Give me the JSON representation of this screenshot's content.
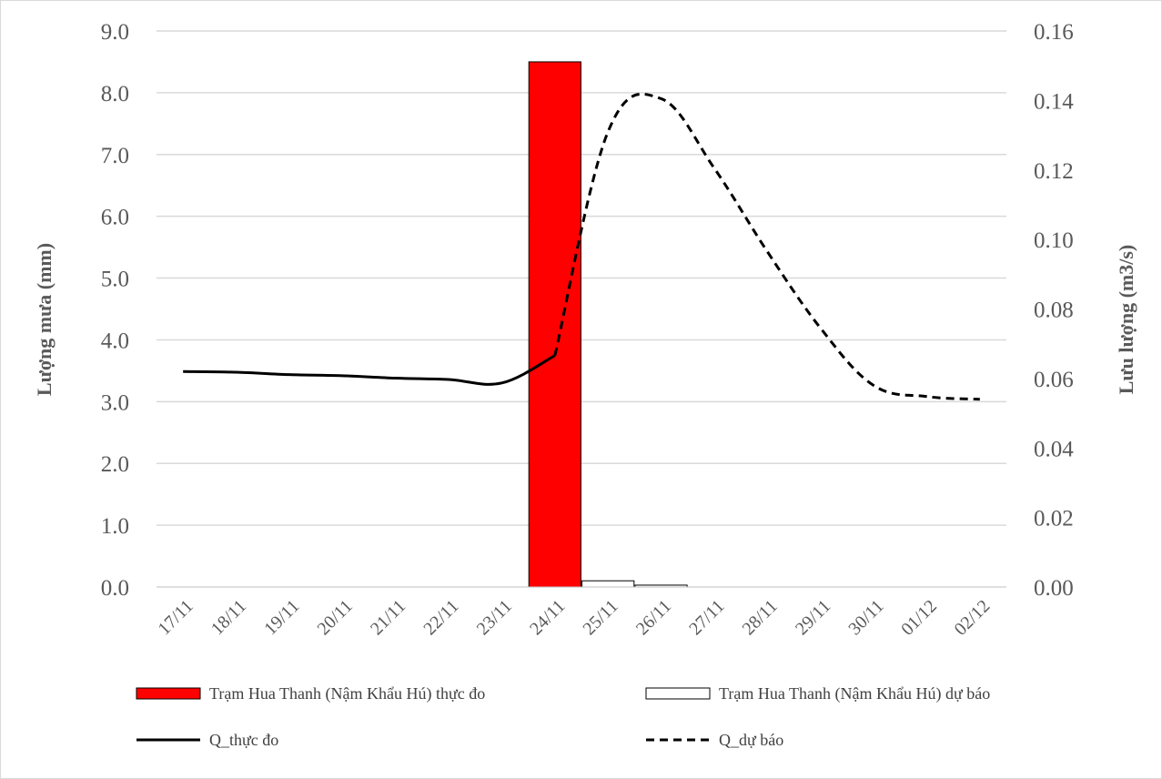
{
  "chart_data": {
    "type": "bar",
    "categories": [
      "17/11",
      "18/11",
      "19/11",
      "20/11",
      "21/11",
      "22/11",
      "23/11",
      "24/11",
      "25/11",
      "26/11",
      "27/11",
      "28/11",
      "29/11",
      "30/11",
      "01/12",
      "02/12"
    ],
    "ylabel_left": "Lượng mưa (mm)",
    "ylabel_right": "Lưu lượng (m3/s)",
    "ylim_left": [
      0,
      9
    ],
    "ylim_right": [
      0,
      0.16
    ],
    "yticks_left": [
      "0.0",
      "1.0",
      "2.0",
      "3.0",
      "4.0",
      "5.0",
      "6.0",
      "7.0",
      "8.0",
      "9.0"
    ],
    "yticks_right": [
      "0.00",
      "0.02",
      "0.04",
      "0.06",
      "0.08",
      "0.10",
      "0.12",
      "0.14",
      "0.16"
    ],
    "grid": true,
    "legend_position": "bottom",
    "series": [
      {
        "name": "Trạm Hua Thanh (Nậm Khẩu Hú) thực đo",
        "kind": "bar",
        "axis": "left",
        "color": "#ff0000",
        "values": [
          0,
          0,
          0,
          0,
          0,
          0,
          0,
          8.5,
          null,
          null,
          null,
          null,
          null,
          null,
          null,
          null
        ]
      },
      {
        "name": "Trạm Hua Thanh (Nậm Khẩu Hú) dự báo",
        "kind": "bar",
        "axis": "left",
        "color": "#ffffff",
        "values": [
          null,
          null,
          null,
          null,
          null,
          null,
          null,
          null,
          0.1,
          0.03,
          0,
          0,
          0,
          0,
          0,
          0
        ]
      },
      {
        "name": "Q_thực đo",
        "kind": "line",
        "style": "solid",
        "axis": "right",
        "color": "#000000",
        "x": [
          0,
          1,
          2,
          3,
          4,
          5,
          6,
          7
        ],
        "values": [
          0.062,
          0.0618,
          0.0611,
          0.0608,
          0.0601,
          0.0597,
          0.0587,
          0.0666
        ]
      },
      {
        "name": "Q_dự báo",
        "kind": "line",
        "style": "dashed",
        "axis": "right",
        "color": "#000000",
        "x": [
          7,
          8,
          9,
          10,
          11,
          12,
          13,
          14,
          15
        ],
        "values": [
          0.0666,
          0.131,
          0.1405,
          0.1205,
          0.0965,
          0.0745,
          0.058,
          0.0548,
          0.054
        ]
      }
    ]
  }
}
